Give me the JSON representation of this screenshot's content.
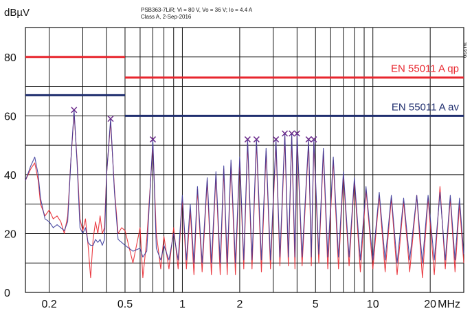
{
  "chart_data": {
    "type": "line",
    "title_lines": [
      "PSB363-7LiR;  Vi = 80 V, Vo = 36 V; Io = 4.4 A",
      "Class A, 2-Sep-2016"
    ],
    "ylabel": "dBµV",
    "xlabel_unit": "MHz",
    "side_code": "JM229",
    "x_scale": "log",
    "xlim": [
      0.15,
      30
    ],
    "ylim": [
      0,
      90
    ],
    "x_ticks": [
      {
        "value": 0.2,
        "label": "0.2"
      },
      {
        "value": 0.5,
        "label": "0.5"
      },
      {
        "value": 1,
        "label": "1"
      },
      {
        "value": 2,
        "label": "2"
      },
      {
        "value": 5,
        "label": "5"
      },
      {
        "value": 10,
        "label": "10"
      },
      {
        "value": 20,
        "label": "20"
      }
    ],
    "y_ticks": [
      {
        "value": 0,
        "label": "0"
      },
      {
        "value": 20,
        "label": "20"
      },
      {
        "value": 40,
        "label": "40"
      },
      {
        "value": 60,
        "label": "60"
      },
      {
        "value": 80,
        "label": "80"
      }
    ],
    "grid": true,
    "limit_lines": [
      {
        "label": "EN 55011 A qp",
        "color": "#e8262e",
        "segments": [
          [
            0.15,
            0.5,
            80
          ],
          [
            0.5,
            30,
            73
          ]
        ]
      },
      {
        "label": "EN 55011 A av",
        "color": "#1f2e6e",
        "segments": [
          [
            0.15,
            0.5,
            67
          ],
          [
            0.5,
            30,
            60
          ]
        ]
      }
    ],
    "peak_markers": [
      {
        "x": 0.27,
        "y": 62
      },
      {
        "x": 0.42,
        "y": 59
      },
      {
        "x": 0.7,
        "y": 52
      },
      {
        "x": 2.2,
        "y": 52
      },
      {
        "x": 2.45,
        "y": 52
      },
      {
        "x": 3.1,
        "y": 52
      },
      {
        "x": 3.45,
        "y": 54
      },
      {
        "x": 3.75,
        "y": 54
      },
      {
        "x": 4.0,
        "y": 54
      },
      {
        "x": 4.6,
        "y": 52
      },
      {
        "x": 4.9,
        "y": 52
      }
    ],
    "series": [
      {
        "color": "#e8262e",
        "points": [
          [
            0.15,
            38
          ],
          [
            0.16,
            42
          ],
          [
            0.168,
            44
          ],
          [
            0.175,
            38
          ],
          [
            0.18,
            30
          ],
          [
            0.19,
            26
          ],
          [
            0.2,
            28
          ],
          [
            0.21,
            25
          ],
          [
            0.22,
            26
          ],
          [
            0.23,
            24
          ],
          [
            0.24,
            20
          ],
          [
            0.25,
            26
          ],
          [
            0.26,
            45
          ],
          [
            0.27,
            61
          ],
          [
            0.28,
            45
          ],
          [
            0.29,
            25
          ],
          [
            0.3,
            21
          ],
          [
            0.31,
            25
          ],
          [
            0.32,
            16
          ],
          [
            0.33,
            5
          ],
          [
            0.34,
            18
          ],
          [
            0.35,
            24
          ],
          [
            0.36,
            20
          ],
          [
            0.37,
            26
          ],
          [
            0.38,
            20
          ],
          [
            0.39,
            22
          ],
          [
            0.4,
            40
          ],
          [
            0.42,
            58
          ],
          [
            0.44,
            35
          ],
          [
            0.46,
            20
          ],
          [
            0.48,
            22
          ],
          [
            0.5,
            21
          ],
          [
            0.55,
            10
          ],
          [
            0.6,
            22
          ],
          [
            0.62,
            5
          ],
          [
            0.65,
            18
          ],
          [
            0.7,
            50
          ],
          [
            0.73,
            20
          ],
          [
            0.77,
            8
          ],
          [
            0.8,
            19
          ],
          [
            0.85,
            8
          ],
          [
            0.9,
            22
          ],
          [
            0.95,
            8
          ],
          [
            1.0,
            32
          ],
          [
            1.05,
            8
          ],
          [
            1.1,
            28
          ],
          [
            1.15,
            6
          ],
          [
            1.2,
            35
          ],
          [
            1.27,
            7
          ],
          [
            1.35,
            38
          ],
          [
            1.42,
            6
          ],
          [
            1.5,
            40
          ],
          [
            1.58,
            6
          ],
          [
            1.65,
            42
          ],
          [
            1.72,
            6
          ],
          [
            1.8,
            44
          ],
          [
            1.9,
            6
          ],
          [
            2.0,
            45
          ],
          [
            2.1,
            8
          ],
          [
            2.2,
            51
          ],
          [
            2.32,
            8
          ],
          [
            2.45,
            51
          ],
          [
            2.6,
            7
          ],
          [
            2.75,
            48
          ],
          [
            2.9,
            8
          ],
          [
            3.1,
            51
          ],
          [
            3.25,
            9
          ],
          [
            3.45,
            53
          ],
          [
            3.6,
            9
          ],
          [
            3.75,
            53
          ],
          [
            3.9,
            8
          ],
          [
            4.0,
            53
          ],
          [
            4.25,
            9
          ],
          [
            4.6,
            51
          ],
          [
            4.75,
            9
          ],
          [
            4.9,
            51
          ],
          [
            5.2,
            10
          ],
          [
            5.5,
            48
          ],
          [
            5.8,
            8
          ],
          [
            6.2,
            45
          ],
          [
            6.6,
            8
          ],
          [
            7.0,
            40
          ],
          [
            7.5,
            9
          ],
          [
            8.0,
            38
          ],
          [
            8.6,
            7
          ],
          [
            9.2,
            35
          ],
          [
            10.0,
            8
          ],
          [
            10.8,
            33
          ],
          [
            11.6,
            7
          ],
          [
            12.5,
            32
          ],
          [
            13.4,
            6
          ],
          [
            14.5,
            31
          ],
          [
            15.6,
            7
          ],
          [
            17.0,
            33
          ],
          [
            18.2,
            5
          ],
          [
            19.5,
            32
          ],
          [
            21.0,
            6
          ],
          [
            22.5,
            36
          ],
          [
            24.0,
            8
          ],
          [
            25.5,
            32
          ],
          [
            27.0,
            7
          ],
          [
            28.5,
            30
          ],
          [
            30.0,
            10
          ]
        ]
      },
      {
        "color": "#3a3a9a",
        "points": [
          [
            0.15,
            38
          ],
          [
            0.16,
            43
          ],
          [
            0.168,
            46
          ],
          [
            0.175,
            40
          ],
          [
            0.18,
            32
          ],
          [
            0.19,
            25
          ],
          [
            0.2,
            24
          ],
          [
            0.21,
            22
          ],
          [
            0.22,
            23
          ],
          [
            0.23,
            22
          ],
          [
            0.24,
            21
          ],
          [
            0.25,
            24
          ],
          [
            0.26,
            45
          ],
          [
            0.27,
            62
          ],
          [
            0.28,
            44
          ],
          [
            0.29,
            22
          ],
          [
            0.3,
            20
          ],
          [
            0.31,
            22
          ],
          [
            0.32,
            17
          ],
          [
            0.33,
            16
          ],
          [
            0.34,
            16
          ],
          [
            0.35,
            18
          ],
          [
            0.36,
            17
          ],
          [
            0.37,
            18
          ],
          [
            0.38,
            16
          ],
          [
            0.39,
            18
          ],
          [
            0.4,
            40
          ],
          [
            0.42,
            59
          ],
          [
            0.44,
            34
          ],
          [
            0.46,
            18
          ],
          [
            0.48,
            17
          ],
          [
            0.5,
            16
          ],
          [
            0.55,
            14
          ],
          [
            0.6,
            15
          ],
          [
            0.62,
            12
          ],
          [
            0.65,
            14
          ],
          [
            0.7,
            52
          ],
          [
            0.73,
            15
          ],
          [
            0.77,
            11
          ],
          [
            0.8,
            16
          ],
          [
            0.85,
            11
          ],
          [
            0.9,
            20
          ],
          [
            0.95,
            11
          ],
          [
            1.0,
            33
          ],
          [
            1.05,
            11
          ],
          [
            1.1,
            30
          ],
          [
            1.15,
            10
          ],
          [
            1.2,
            36
          ],
          [
            1.27,
            10
          ],
          [
            1.35,
            39
          ],
          [
            1.42,
            10
          ],
          [
            1.5,
            41
          ],
          [
            1.58,
            10
          ],
          [
            1.65,
            43
          ],
          [
            1.72,
            10
          ],
          [
            1.8,
            45
          ],
          [
            1.9,
            10
          ],
          [
            2.0,
            46
          ],
          [
            2.1,
            11
          ],
          [
            2.2,
            52
          ],
          [
            2.32,
            11
          ],
          [
            2.45,
            52
          ],
          [
            2.6,
            11
          ],
          [
            2.75,
            49
          ],
          [
            2.9,
            11
          ],
          [
            3.1,
            52
          ],
          [
            3.25,
            12
          ],
          [
            3.45,
            54
          ],
          [
            3.6,
            12
          ],
          [
            3.75,
            54
          ],
          [
            3.9,
            12
          ],
          [
            4.0,
            54
          ],
          [
            4.25,
            12
          ],
          [
            4.6,
            52
          ],
          [
            4.75,
            12
          ],
          [
            4.9,
            52
          ],
          [
            5.2,
            13
          ],
          [
            5.5,
            49
          ],
          [
            5.8,
            12
          ],
          [
            6.2,
            46
          ],
          [
            6.6,
            12
          ],
          [
            7.0,
            41
          ],
          [
            7.5,
            12
          ],
          [
            8.0,
            39
          ],
          [
            8.6,
            11
          ],
          [
            9.2,
            36
          ],
          [
            10.0,
            11
          ],
          [
            10.8,
            34
          ],
          [
            11.6,
            11
          ],
          [
            12.5,
            33
          ],
          [
            13.4,
            10
          ],
          [
            14.5,
            32
          ],
          [
            15.6,
            11
          ],
          [
            17.0,
            33
          ],
          [
            18.2,
            10
          ],
          [
            19.5,
            33
          ],
          [
            21.0,
            11
          ],
          [
            22.5,
            34
          ],
          [
            24.0,
            11
          ],
          [
            25.5,
            33
          ],
          [
            27.0,
            11
          ],
          [
            28.5,
            32
          ],
          [
            30.0,
            13
          ]
        ]
      }
    ]
  }
}
